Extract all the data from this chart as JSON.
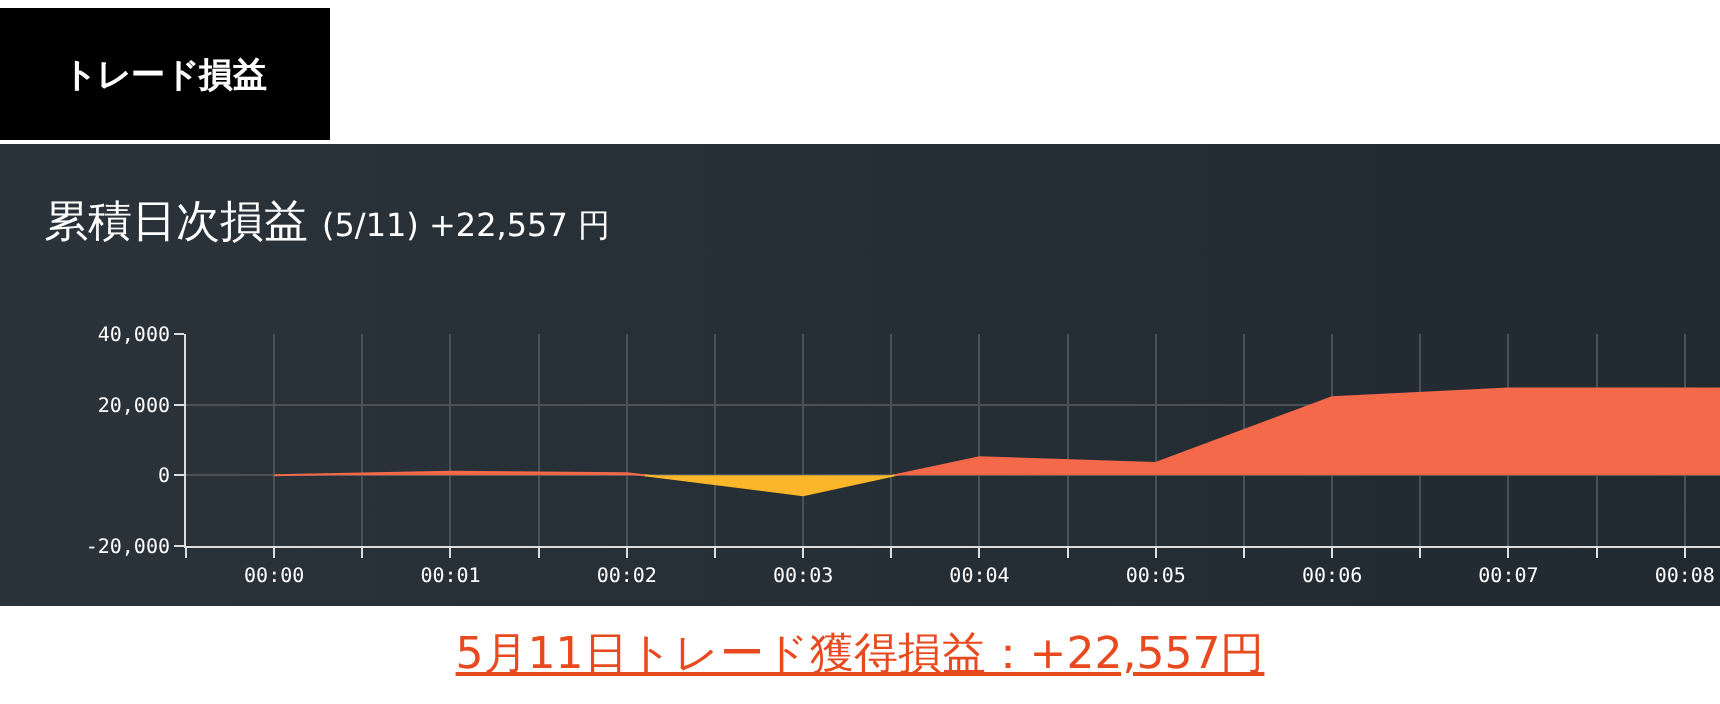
{
  "chart_data": {
    "type": "area",
    "title": "累積日次損益",
    "subtitle": "(5/11) +22,557 円",
    "annotations": [
      "トレード損益",
      "5月11日トレード獲得損益：+22,557円"
    ],
    "series": [
      {
        "x": [
          0,
          1,
          2,
          2.1,
          3,
          3.52,
          4,
          5,
          6,
          7,
          8,
          8.2
        ],
        "values": [
          0,
          1000,
          600,
          0,
          null,
          0,
          5100,
          3500,
          22100,
          24600,
          24600,
          24600
        ],
        "color": "#f4694a"
      },
      {
        "x": [
          2.1,
          3,
          3.52
        ],
        "values": [
          0,
          -5600,
          0
        ],
        "color": "#fbb62a"
      }
    ],
    "xlim": [
      -0.5,
      8.2
    ],
    "xticks": [
      {
        "value": -0.5,
        "label": null
      },
      {
        "value": 0,
        "label": "00:00"
      },
      {
        "value": 0.5,
        "label": null
      },
      {
        "value": 1,
        "label": "00:01"
      },
      {
        "value": 1.5,
        "label": null
      },
      {
        "value": 2,
        "label": "00:02"
      },
      {
        "value": 2.5,
        "label": null
      },
      {
        "value": 3,
        "label": "00:03"
      },
      {
        "value": 3.5,
        "label": null
      },
      {
        "value": 4,
        "label": "00:04"
      },
      {
        "value": 4.5,
        "label": null
      },
      {
        "value": 5,
        "label": "00:05"
      },
      {
        "value": 5.5,
        "label": null
      },
      {
        "value": 6,
        "label": "00:06"
      },
      {
        "value": 6.5,
        "label": null
      },
      {
        "value": 7,
        "label": "00:07"
      },
      {
        "value": 7.5,
        "label": null
      },
      {
        "value": 8,
        "label": "00:08"
      }
    ],
    "ylim": [
      -20000,
      40000
    ],
    "yticks": [
      {
        "value": -20000,
        "label": "-20,000"
      },
      {
        "value": 0,
        "label": "0"
      },
      {
        "value": 20000,
        "label": "20,000"
      },
      {
        "value": 40000,
        "label": "40,000"
      }
    ],
    "grid": true
  }
}
